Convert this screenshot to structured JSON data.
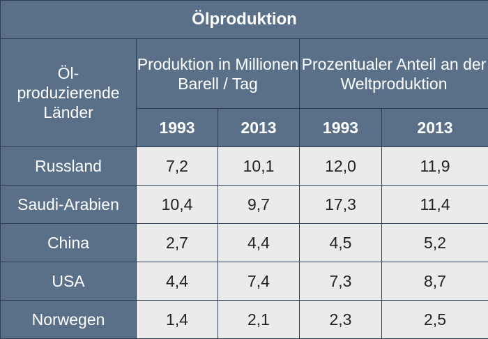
{
  "table": {
    "title": "Ölproduktion",
    "row_header": "Öl-\nproduzierende\nLänder",
    "group_production": "Produktion in Millionen Barell / Tag",
    "group_share": "Prozentualer Anteil an der Weltproduktion",
    "years": [
      "1993",
      "2013",
      "1993",
      "2013"
    ],
    "rows": [
      {
        "country": "Russland",
        "values": [
          "7,2",
          "10,1",
          "12,0",
          "11,9"
        ]
      },
      {
        "country": "Saudi-Arabien",
        "values": [
          "10,4",
          "9,7",
          "17,3",
          "11,4"
        ]
      },
      {
        "country": "China",
        "values": [
          "2,7",
          "4,4",
          "4,5",
          "5,2"
        ]
      },
      {
        "country": "USA",
        "values": [
          "4,4",
          "7,4",
          "7,3",
          "8,7"
        ]
      },
      {
        "country": "Norwegen",
        "values": [
          "1,4",
          "2,1",
          "2,3",
          "2,5"
        ]
      }
    ]
  }
}
